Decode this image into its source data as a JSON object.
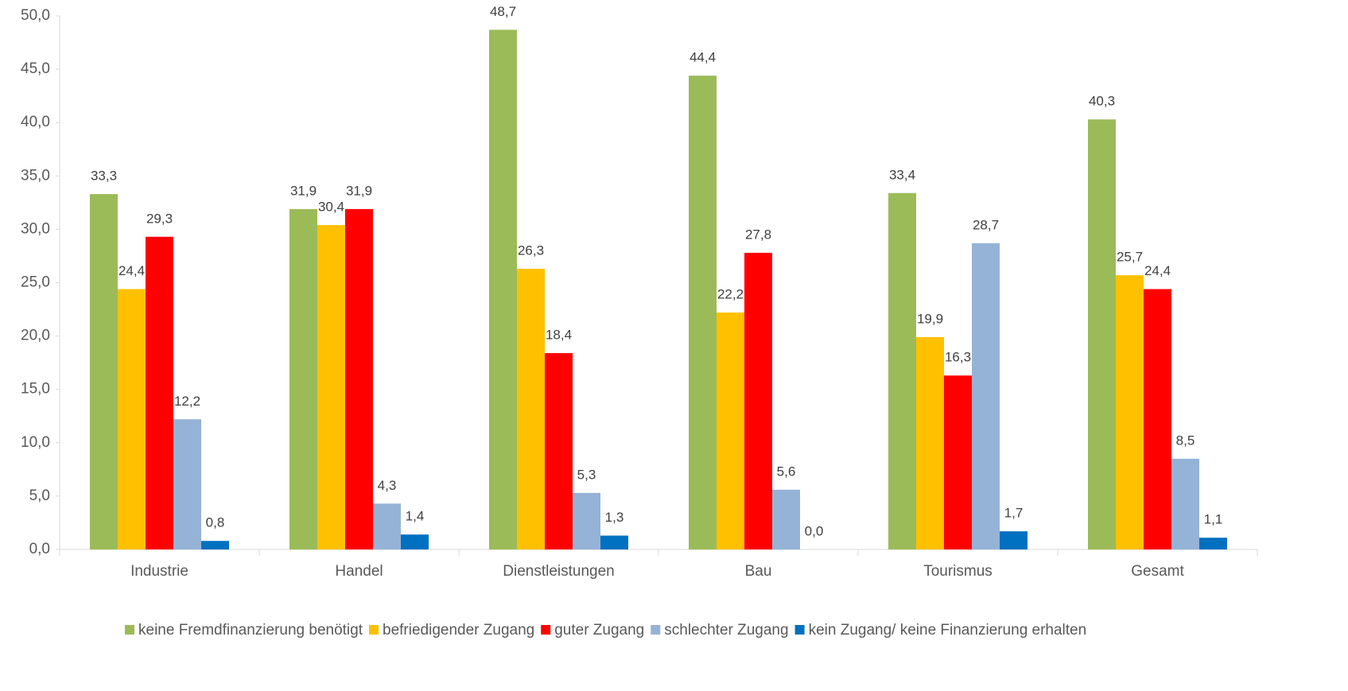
{
  "chart_data": {
    "type": "bar",
    "categories": [
      "Industrie",
      "Handel",
      "Dienstleistungen",
      "Bau",
      "Tourismus",
      "Gesamt"
    ],
    "series": [
      {
        "name": "keine Fremdfinanzierung benötigt",
        "color": "#9bbb59",
        "values": [
          33.3,
          31.9,
          48.7,
          44.4,
          33.4,
          40.3
        ],
        "value_labels": [
          "33,3",
          "31,9",
          "48,7",
          "44,4",
          "33,4",
          "40,3"
        ]
      },
      {
        "name": "befriedigender Zugang",
        "color": "#ffc000",
        "values": [
          24.4,
          30.4,
          26.3,
          22.2,
          19.9,
          25.7
        ],
        "value_labels": [
          "24,4",
          "30,4",
          "26,3",
          "22,2",
          "19,9",
          "25,7"
        ]
      },
      {
        "name": "guter Zugang",
        "color": "#ff0000",
        "values": [
          29.3,
          31.9,
          18.4,
          27.8,
          16.3,
          24.4
        ],
        "value_labels": [
          "29,3",
          "31,9",
          "18,4",
          "27,8",
          "16,3",
          "24,4"
        ]
      },
      {
        "name": "schlechter Zugang",
        "color": "#95b3d7",
        "values": [
          12.2,
          4.3,
          5.3,
          5.6,
          28.7,
          8.5
        ],
        "value_labels": [
          "12,2",
          "4,3",
          "5,3",
          "5,6",
          "28,7",
          "8,5"
        ]
      },
      {
        "name": "kein Zugang/ keine Finanzierung erhalten",
        "color": "#0070c0",
        "values": [
          0.8,
          1.4,
          1.3,
          0.0,
          1.7,
          1.1
        ],
        "value_labels": [
          "0,8",
          "1,4",
          "1,3",
          "0,0",
          "1,7",
          "1,1"
        ]
      }
    ],
    "ylim": [
      0,
      50
    ],
    "yticks": [
      {
        "value": 0,
        "label": "0,0"
      },
      {
        "value": 5,
        "label": "5,0"
      },
      {
        "value": 10,
        "label": "10,0"
      },
      {
        "value": 15,
        "label": "15,0"
      },
      {
        "value": 20,
        "label": "20,0"
      },
      {
        "value": 25,
        "label": "25,0"
      },
      {
        "value": 30,
        "label": "30,0"
      },
      {
        "value": 35,
        "label": "35,0"
      },
      {
        "value": 40,
        "label": "40,0"
      },
      {
        "value": 45,
        "label": "45,0"
      },
      {
        "value": 50,
        "label": "50,0"
      }
    ],
    "grid": false,
    "legend": "bottom"
  }
}
